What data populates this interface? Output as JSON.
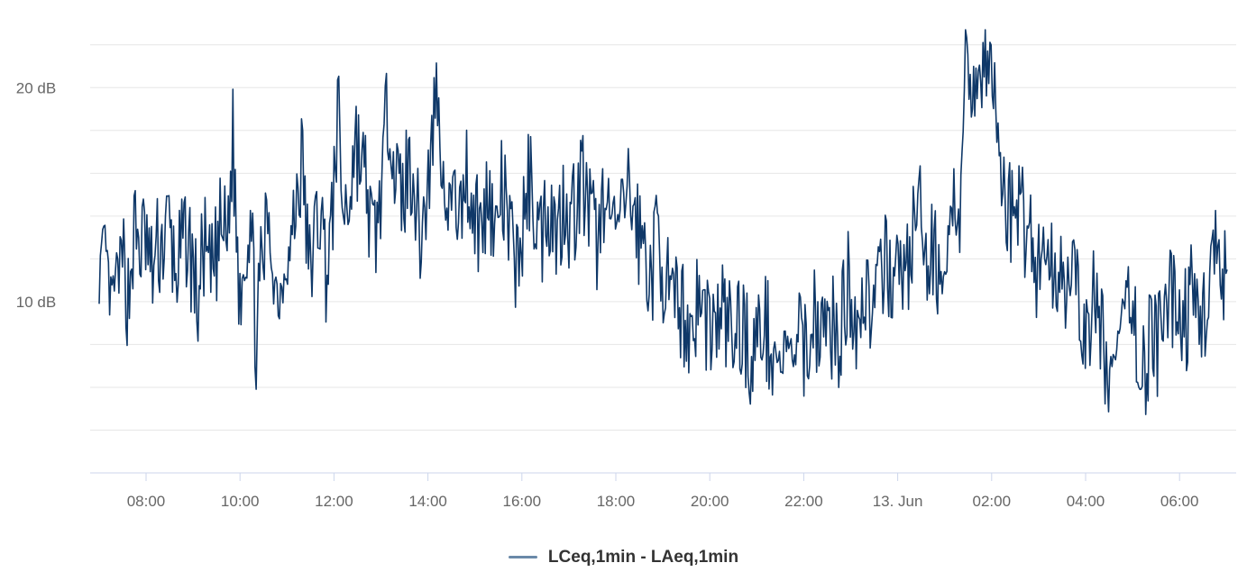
{
  "colors": {
    "series": "#0f3868",
    "legend_swatch": "#6a89a8",
    "grid": "#e6e6e6",
    "axis": "#ccd6eb",
    "tick_label": "#666666",
    "legend_text": "#333333"
  },
  "chart_data": {
    "type": "line",
    "title": "",
    "xlabel": "",
    "ylabel": "",
    "ylim": [
      2,
      23
    ],
    "y_ticks": [
      {
        "value": 10,
        "label": "10 dB"
      },
      {
        "value": 20,
        "label": "20 dB"
      }
    ],
    "x_range": [
      "12 Jun 07:00",
      "13 Jun 07:10"
    ],
    "x_ticks": [
      "08:00",
      "10:00",
      "12:00",
      "14:00",
      "16:00",
      "18:00",
      "20:00",
      "22:00",
      "13. Jun",
      "02:00",
      "04:00",
      "06:00"
    ],
    "grid": true,
    "legend_position": "bottom-center",
    "series": [
      {
        "name": "LCeq,1min - LAeq,1min",
        "x_start": "12 Jun 07:00",
        "interval": "10 min",
        "values": [
          11.3,
          12.6,
          9.8,
          11.2,
          12.0,
          10.2,
          13.2,
          12.5,
          13.0,
          11.2,
          12.4,
          12.8,
          13.6,
          11.4,
          12.0,
          13.1,
          11.8,
          9.8,
          12.7,
          11.0,
          11.9,
          13.5,
          12.8,
          17.6,
          10.6,
          12.4,
          14.1,
          8.3,
          11.6,
          13.7,
          11.2,
          10.1,
          11.8,
          12.4,
          14.9,
          16.7,
          11.3,
          12.9,
          14.4,
          11.6,
          13.2,
          19.0,
          14.0,
          14.8,
          17.7,
          16.4,
          15.4,
          12.7,
          13.9,
          17.0,
          19.7,
          15.6,
          14.8,
          16.0,
          16.6,
          12.9,
          14.3,
          16.5,
          20.4,
          15.8,
          14.6,
          15.3,
          13.2,
          16.5,
          14.7,
          14.0,
          13.0,
          16.2,
          12.4,
          15.2,
          14.1,
          12.3,
          12.0,
          13.6,
          15.8,
          14.3,
          12.9,
          14.9,
          14.0,
          13.1,
          15.2,
          13.9,
          14.5,
          15.9,
          14.3,
          13.3,
          12.7,
          15.7,
          13.9,
          13.4,
          14.6,
          15.1,
          14.2,
          13.0,
          12.4,
          10.8,
          13.6,
          11.6,
          10.1,
          9.4,
          9.9,
          9.0,
          8.7,
          10.3,
          9.3,
          9.1,
          8.6,
          9.7,
          9.0,
          8.2,
          9.0,
          8.8,
          7.4,
          8.1,
          9.0,
          8.5,
          7.9,
          7.0,
          7.7,
          7.3,
          8.0,
          7.6,
          8.5,
          9.3,
          9.0,
          8.4,
          8.9,
          8.0,
          9.5,
          11.1,
          9.3,
          9.6,
          10.8,
          9.5,
          10.1,
          11.4,
          12.0,
          10.5,
          11.8,
          11.5,
          13.1,
          14.5,
          11.6,
          12.1,
          11.9,
          11.6,
          12.3,
          15.1,
          13.2,
          20.3,
          20.9,
          20.1,
          21.2,
          20.3,
          20.0,
          16.1,
          14.8,
          13.8,
          15.2,
          13.6,
          14.0,
          11.4,
          12.2,
          12.3,
          11.1,
          11.8,
          11.4,
          11.2,
          9.9,
          9.6,
          7.9,
          10.0,
          9.1,
          7.6,
          6.5,
          7.8,
          8.8,
          10.4,
          9.4,
          6.4,
          7.0,
          9.2,
          7.8,
          8.5,
          9.9,
          10.6,
          8.9,
          9.3,
          10.5,
          8.5,
          9.8,
          10.6,
          13.2,
          9.8,
          11.5
        ]
      }
    ]
  }
}
